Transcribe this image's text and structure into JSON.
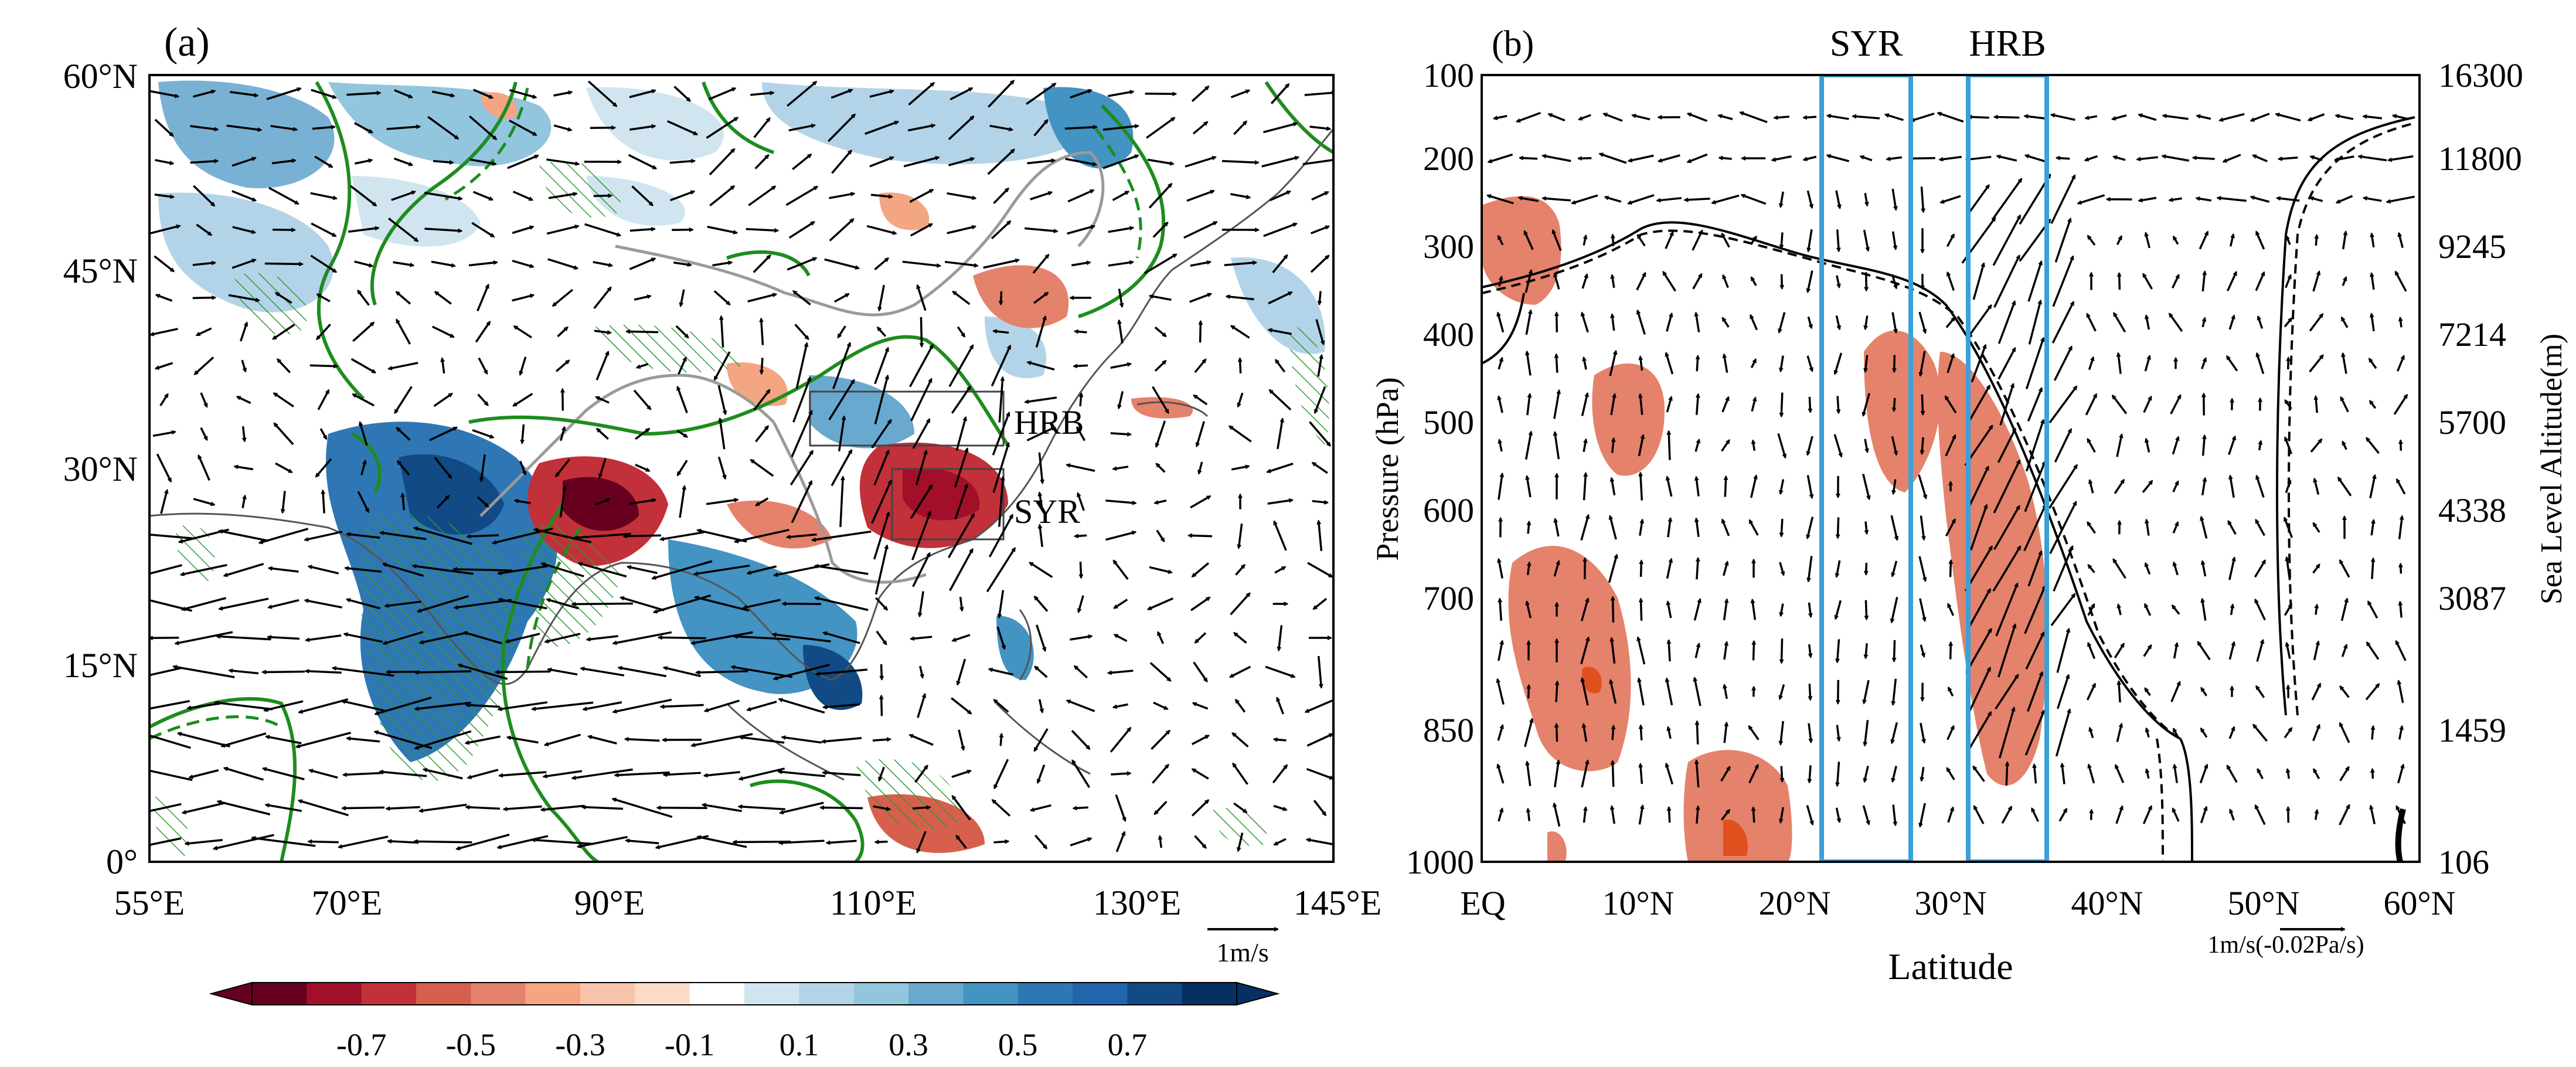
{
  "panel_a": {
    "label": "(a)",
    "lat_ticks": [
      "60°N",
      "45°N",
      "30°N",
      "15°N",
      "0°"
    ],
    "lon_ticks": [
      "55°E",
      "70°E",
      "90°E",
      "110°E",
      "130°E",
      "145°E"
    ],
    "region_labels": [
      "HRB",
      "SYR"
    ],
    "reference_vector_label": "1m/s",
    "land_color": "#ffffff",
    "coast_color": "#555555",
    "contour_color": "#1e8c1e"
  },
  "colorbar": {
    "tick_labels": [
      "-0.7",
      "-0.5",
      "-0.3",
      "-0.1",
      "0.1",
      "0.3",
      "0.5",
      "0.7"
    ],
    "colors": [
      "#67001f",
      "#a11028",
      "#c2303a",
      "#d6604d",
      "#e5826b",
      "#f4a582",
      "#f8c5ac",
      "#fddbc7",
      "#ffffff",
      "#d1e5f0",
      "#b3d4e8",
      "#92c5de",
      "#6aa9cf",
      "#4393c3",
      "#2f77b4",
      "#2166ac",
      "#114a85",
      "#053061"
    ]
  },
  "panel_b": {
    "label": "(b)",
    "left_axis_label": "Pressure (hPa)",
    "right_axis_label": "Sea Level Altitude(m)",
    "x_axis_label": "Latitude",
    "pressure_ticks": [
      "100",
      "200",
      "300",
      "400",
      "500",
      "600",
      "700",
      "850",
      "1000"
    ],
    "altitude_ticks": [
      "16300",
      "11800",
      "9245",
      "7214",
      "5700",
      "4338",
      "3087",
      "1459",
      "106"
    ],
    "latitude_ticks": [
      "EQ",
      "10°N",
      "20°N",
      "30°N",
      "40°N",
      "50°N",
      "60°N"
    ],
    "box_labels": [
      "SYR",
      "HRB"
    ],
    "reference_vector_label": "1m/s(-0.02Pa/s)",
    "box_color": "#3aa0d8",
    "shade_color": "#e5826b"
  }
}
